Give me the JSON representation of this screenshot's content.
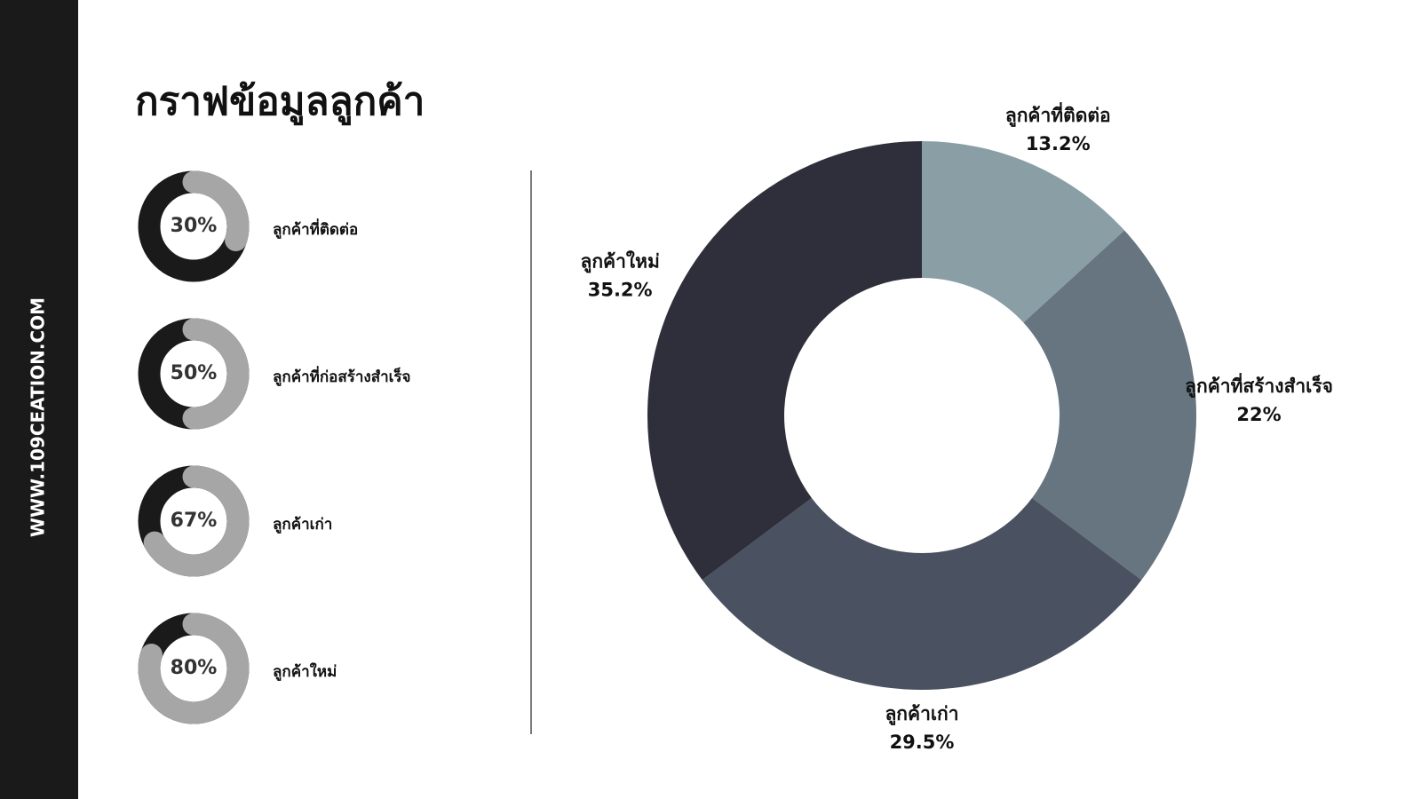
{
  "sidebar": "WWW.109CEATION.COM",
  "title": "กราฟข้อมูลลูกค้า",
  "chart_data": [
    {
      "type": "gauge",
      "categories": [
        "ลูกค้าที่ติดต่อ",
        "ลูกค้าที่ก่อสร้างสำเร็จ",
        "ลูกค้าเก่า",
        "ลูกค้าใหม่"
      ],
      "values": [
        30,
        50,
        67,
        80
      ],
      "value_labels": [
        "30%",
        "50%",
        "67%",
        "80%"
      ],
      "color": "#a6a6a6",
      "track_color": "#1a1a1a"
    },
    {
      "type": "donut",
      "categories": [
        "ลูกค้าที่ติดต่อ",
        "ลูกค้าที่สร้างสำเร็จ",
        "ลูกค้าเก่า",
        "ลูกค้าใหม่"
      ],
      "values": [
        13.2,
        22,
        29.5,
        35.2
      ],
      "value_labels": [
        "13.2%",
        "22%",
        "29.5%",
        "35.2%"
      ],
      "colors": [
        "#8a9ea6",
        "#66757f",
        "#4a5160",
        "#2f2f3c"
      ]
    }
  ]
}
